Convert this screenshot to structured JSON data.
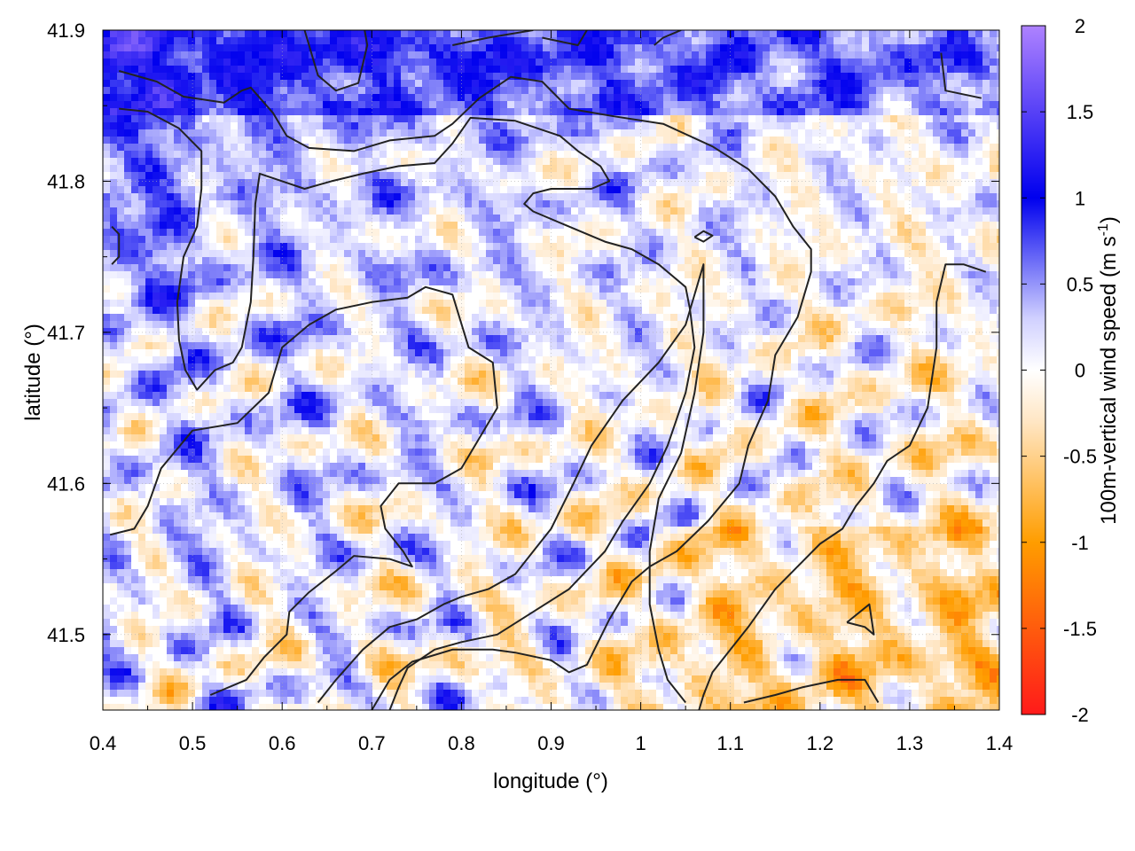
{
  "chart_data": {
    "type": "heatmap",
    "title": "",
    "xlabel": "longitude (°)",
    "ylabel": "latitude (°)",
    "xlim": [
      0.4,
      1.4
    ],
    "ylim": [
      41.45,
      41.9
    ],
    "x_ticks": [
      0.4,
      0.5,
      0.6,
      0.7,
      0.8,
      0.9,
      1.0,
      1.1,
      1.2,
      1.3,
      1.4
    ],
    "x_tick_labels": [
      "0.4",
      "0.5",
      "0.6",
      "0.7",
      "0.8",
      "0.9",
      "1",
      "1.1",
      "1.2",
      "1.3",
      "1.4"
    ],
    "y_ticks": [
      41.5,
      41.6,
      41.7,
      41.8,
      41.9
    ],
    "y_tick_labels": [
      "41.5",
      "41.6",
      "41.7",
      "41.8",
      "41.9"
    ],
    "grid": true,
    "colorbar": {
      "label": "100m-vertical wind speed (m s",
      "label_sup": "-1",
      "label_end": ")",
      "range": [
        -2,
        2
      ],
      "ticks": [
        2,
        1.5,
        1,
        0.5,
        0,
        -0.5,
        -1,
        -1.5,
        -2
      ],
      "tick_labels": [
        "2",
        "1.5",
        "1",
        "0.5",
        "0",
        "-0.5",
        "-1",
        "-1.5",
        "-2"
      ],
      "colors": [
        {
          "value": -2,
          "color": "#ff1a1a"
        },
        {
          "value": -1,
          "color": "#ff9d00"
        },
        {
          "value": -0.3,
          "color": "#ffe6c4"
        },
        {
          "value": 0,
          "color": "#ffffff"
        },
        {
          "value": 0.3,
          "color": "#d0d0ff"
        },
        {
          "value": 1,
          "color": "#0000ee"
        },
        {
          "value": 2,
          "color": "#ae82ff"
        }
      ]
    },
    "contours": [
      [
        [
          0.418,
          41.873
        ],
        [
          0.46,
          41.866
        ],
        [
          0.49,
          41.856
        ],
        [
          0.535,
          41.852
        ],
        [
          0.555,
          41.86
        ],
        [
          0.565,
          41.862
        ],
        [
          0.59,
          41.845
        ],
        [
          0.605,
          41.83
        ],
        [
          0.63,
          41.822
        ],
        [
          0.68,
          41.82
        ],
        [
          0.72,
          41.827
        ],
        [
          0.77,
          41.83
        ],
        [
          0.79,
          41.838
        ],
        [
          0.82,
          41.855
        ],
        [
          0.855,
          41.869
        ],
        [
          0.89,
          41.866
        ],
        [
          0.92,
          41.848
        ],
        [
          0.97,
          41.843
        ],
        [
          1.025,
          41.838
        ],
        [
          1.08,
          41.823
        ],
        [
          1.12,
          41.808
        ],
        [
          1.15,
          41.79
        ],
        [
          1.17,
          41.77
        ],
        [
          1.19,
          41.755
        ],
        [
          1.19,
          41.74
        ],
        [
          1.175,
          41.71
        ],
        [
          1.15,
          41.685
        ],
        [
          1.142,
          41.655
        ],
        [
          1.12,
          41.625
        ],
        [
          1.11,
          41.6
        ],
        [
          1.075,
          41.575
        ],
        [
          1.04,
          41.555
        ],
        [
          1.01,
          41.545
        ],
        [
          0.99,
          41.535
        ],
        [
          0.965,
          41.51
        ],
        [
          0.94,
          41.48
        ],
        [
          0.92,
          41.475
        ],
        [
          0.9,
          41.483
        ],
        [
          0.86,
          41.488
        ],
        [
          0.835,
          41.49
        ],
        [
          0.79,
          41.49
        ],
        [
          0.745,
          41.482
        ],
        [
          0.72,
          41.47
        ],
        [
          0.7,
          41.45
        ]
      ],
      [
        [
          0.418,
          41.848
        ],
        [
          0.45,
          41.846
        ],
        [
          0.485,
          41.835
        ],
        [
          0.51,
          41.82
        ],
        [
          0.51,
          41.795
        ],
        [
          0.505,
          41.77
        ],
        [
          0.49,
          41.75
        ],
        [
          0.483,
          41.72
        ],
        [
          0.485,
          41.695
        ],
        [
          0.492,
          41.675
        ],
        [
          0.505,
          41.662
        ],
        [
          0.525,
          41.675
        ],
        [
          0.545,
          41.68
        ],
        [
          0.555,
          41.69
        ],
        [
          0.565,
          41.72
        ],
        [
          0.568,
          41.75
        ],
        [
          0.57,
          41.785
        ],
        [
          0.575,
          41.805
        ],
        [
          0.6,
          41.8
        ],
        [
          0.625,
          41.795
        ],
        [
          0.655,
          41.8
        ],
        [
          0.69,
          41.805
        ],
        [
          0.73,
          41.81
        ],
        [
          0.77,
          41.812
        ],
        [
          0.79,
          41.825
        ],
        [
          0.81,
          41.842
        ],
        [
          0.86,
          41.84
        ],
        [
          0.91,
          41.83
        ],
        [
          0.93,
          41.82
        ],
        [
          0.955,
          41.81
        ],
        [
          0.965,
          41.8
        ],
        [
          0.945,
          41.795
        ],
        [
          0.9,
          41.795
        ],
        [
          0.88,
          41.792
        ],
        [
          0.87,
          41.785
        ],
        [
          0.88,
          41.78
        ],
        [
          0.92,
          41.77
        ],
        [
          0.96,
          41.76
        ],
        [
          0.99,
          41.755
        ],
        [
          1.02,
          41.745
        ],
        [
          1.05,
          41.73
        ],
        [
          1.055,
          41.715
        ],
        [
          1.06,
          41.69
        ],
        [
          1.05,
          41.66
        ],
        [
          1.03,
          41.625
        ],
        [
          1.01,
          41.6
        ],
        [
          0.98,
          41.575
        ],
        [
          0.96,
          41.555
        ],
        [
          0.92,
          41.53
        ],
        [
          0.88,
          41.515
        ],
        [
          0.84,
          41.5
        ],
        [
          0.8,
          41.495
        ],
        [
          0.77,
          41.49
        ],
        [
          0.74,
          41.478
        ],
        [
          0.73,
          41.465
        ],
        [
          0.72,
          41.45
        ]
      ],
      [
        [
          0.408,
          41.566
        ],
        [
          0.435,
          41.57
        ],
        [
          0.45,
          41.585
        ],
        [
          0.465,
          41.61
        ],
        [
          0.5,
          41.635
        ],
        [
          0.55,
          41.64
        ],
        [
          0.585,
          41.66
        ],
        [
          0.6,
          41.69
        ],
        [
          0.63,
          41.705
        ],
        [
          0.66,
          41.715
        ],
        [
          0.7,
          41.72
        ],
        [
          0.74,
          41.723
        ],
        [
          0.76,
          41.73
        ],
        [
          0.79,
          41.725
        ],
        [
          0.808,
          41.69
        ],
        [
          0.835,
          41.68
        ],
        [
          0.84,
          41.65
        ],
        [
          0.82,
          41.63
        ],
        [
          0.8,
          41.61
        ],
        [
          0.77,
          41.6
        ],
        [
          0.73,
          41.6
        ],
        [
          0.71,
          41.585
        ],
        [
          0.715,
          41.57
        ],
        [
          0.735,
          41.555
        ],
        [
          0.745,
          41.545
        ],
        [
          0.72,
          41.55
        ],
        [
          0.68,
          41.552
        ],
        [
          0.66,
          41.542
        ],
        [
          0.63,
          41.528
        ],
        [
          0.608,
          41.515
        ],
        [
          0.605,
          41.5
        ],
        [
          0.58,
          41.485
        ],
        [
          0.56,
          41.47
        ],
        [
          0.52,
          41.46
        ]
      ],
      [
        [
          0.64,
          41.455
        ],
        [
          0.66,
          41.47
        ],
        [
          0.69,
          41.49
        ],
        [
          0.72,
          41.505
        ],
        [
          0.75,
          41.51
        ],
        [
          0.78,
          41.52
        ],
        [
          0.8,
          41.525
        ],
        [
          0.83,
          41.53
        ],
        [
          0.86,
          41.54
        ],
        [
          0.88,
          41.555
        ],
        [
          0.9,
          41.57
        ],
        [
          0.925,
          41.6
        ],
        [
          0.945,
          41.625
        ],
        [
          0.98,
          41.655
        ],
        [
          1.02,
          41.68
        ],
        [
          1.05,
          41.705
        ],
        [
          1.07,
          41.745
        ],
        [
          1.07,
          41.7
        ],
        [
          1.06,
          41.66
        ],
        [
          1.045,
          41.62
        ],
        [
          1.02,
          41.59
        ],
        [
          1.01,
          41.555
        ],
        [
          1.01,
          41.52
        ],
        [
          1.02,
          41.49
        ],
        [
          1.03,
          41.47
        ],
        [
          1.05,
          41.455
        ]
      ],
      [
        [
          1.385,
          41.74
        ],
        [
          1.36,
          41.745
        ],
        [
          1.34,
          41.745
        ],
        [
          1.33,
          41.72
        ],
        [
          1.33,
          41.69
        ],
        [
          1.32,
          41.65
        ],
        [
          1.3,
          41.625
        ],
        [
          1.275,
          41.615
        ],
        [
          1.26,
          41.6
        ],
        [
          1.24,
          41.585
        ],
        [
          1.225,
          41.57
        ],
        [
          1.2,
          41.56
        ],
        [
          1.175,
          41.545
        ],
        [
          1.15,
          41.53
        ],
        [
          1.12,
          41.505
        ],
        [
          1.1,
          41.49
        ],
        [
          1.08,
          41.475
        ],
        [
          1.07,
          41.46
        ],
        [
          1.065,
          41.45
        ]
      ],
      [
        [
          1.23,
          41.508
        ],
        [
          1.255,
          41.52
        ],
        [
          1.26,
          41.5
        ],
        [
          1.25,
          41.505
        ],
        [
          1.23,
          41.508
        ]
      ],
      [
        [
          1.06,
          41.763
        ],
        [
          1.07,
          41.767
        ],
        [
          1.08,
          41.764
        ],
        [
          1.07,
          41.76
        ],
        [
          1.06,
          41.763
        ]
      ],
      [
        [
          0.625,
          41.9
        ],
        [
          0.64,
          41.87
        ],
        [
          0.66,
          41.86
        ],
        [
          0.685,
          41.865
        ],
        [
          0.695,
          41.89
        ],
        [
          0.692,
          41.9
        ]
      ],
      [
        [
          0.79,
          41.89
        ],
        [
          0.83,
          41.895
        ],
        [
          0.88,
          41.9
        ]
      ],
      [
        [
          0.89,
          41.895
        ],
        [
          0.93,
          41.89
        ],
        [
          0.94,
          41.9
        ]
      ],
      [
        [
          1.015,
          41.89
        ],
        [
          1.025,
          41.895
        ],
        [
          1.045,
          41.9
        ]
      ],
      [
        [
          1.335,
          41.885
        ],
        [
          1.34,
          41.86
        ],
        [
          1.38,
          41.855
        ]
      ],
      [
        [
          0.41,
          41.77
        ],
        [
          0.418,
          41.765
        ],
        [
          0.418,
          41.75
        ],
        [
          0.41,
          41.745
        ]
      ],
      [
        [
          1.115,
          41.455
        ],
        [
          1.15,
          41.46
        ],
        [
          1.18,
          41.465
        ],
        [
          1.22,
          41.47
        ],
        [
          1.25,
          41.47
        ],
        [
          1.265,
          41.455
        ]
      ]
    ]
  }
}
